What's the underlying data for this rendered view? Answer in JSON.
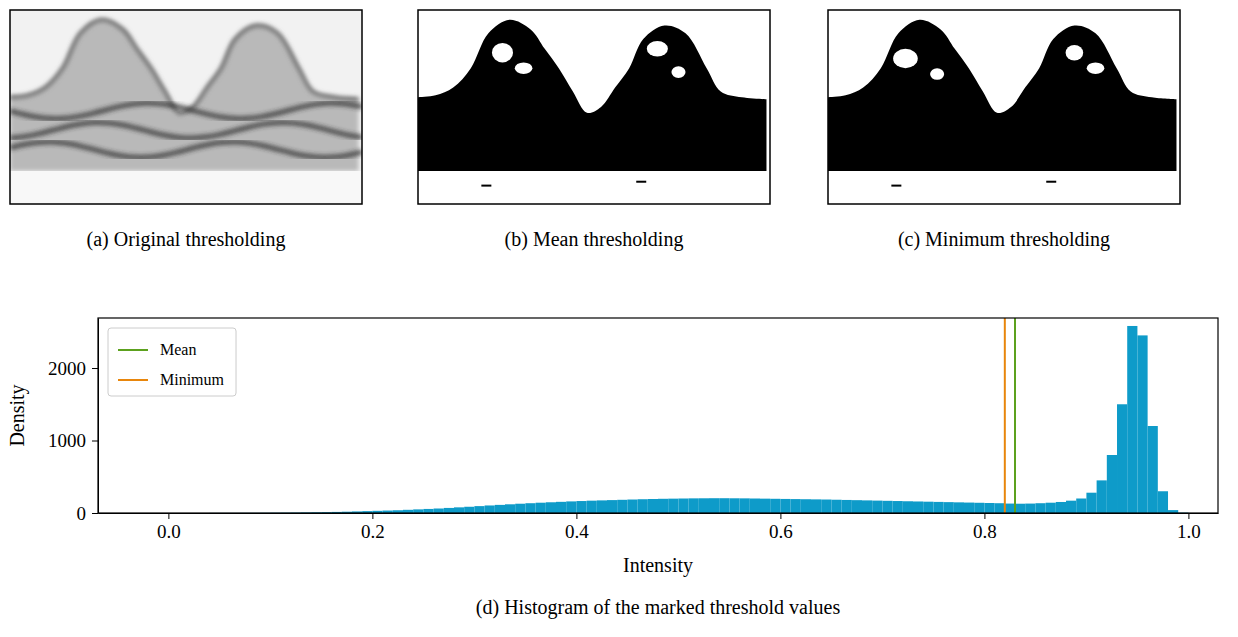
{
  "panels": [
    {
      "caption": "(a) Original thresholding"
    },
    {
      "caption": "(b) Mean thresholding"
    },
    {
      "caption": "(c) Minimum thresholding"
    }
  ],
  "chart_data": {
    "type": "histogram",
    "caption": "(d) Histogram of the marked threshold values",
    "x_label": "Intensity",
    "y_label": "Density",
    "color": "#0e9bc9",
    "bins": [
      0,
      0.01,
      0.02,
      0.03,
      0.04,
      0.05,
      0.06,
      0.07,
      0.08,
      0.09,
      0.1,
      0.11,
      0.12,
      0.13,
      0.14,
      0.15,
      0.16,
      0.17,
      0.18,
      0.19,
      0.2,
      0.21,
      0.22,
      0.23,
      0.24,
      0.25,
      0.26,
      0.27,
      0.28,
      0.29,
      0.3,
      0.31,
      0.32,
      0.33,
      0.34,
      0.35,
      0.36,
      0.37,
      0.38,
      0.39,
      0.4,
      0.41,
      0.42,
      0.43,
      0.44,
      0.45,
      0.46,
      0.47,
      0.48,
      0.49,
      0.5,
      0.51,
      0.52,
      0.53,
      0.54,
      0.55,
      0.56,
      0.57,
      0.58,
      0.59,
      0.6,
      0.61,
      0.62,
      0.63,
      0.64,
      0.65,
      0.66,
      0.67,
      0.68,
      0.69,
      0.7,
      0.71,
      0.72,
      0.73,
      0.74,
      0.75,
      0.76,
      0.77,
      0.78,
      0.79,
      0.8,
      0.81,
      0.82,
      0.83,
      0.84,
      0.85,
      0.86,
      0.87,
      0.88,
      0.89,
      0.9,
      0.91,
      0.92,
      0.93,
      0.94,
      0.95,
      0.96,
      0.97,
      0.98,
      0.99,
      1
    ],
    "values": [
      0,
      0,
      0,
      0,
      1,
      1,
      1,
      2,
      2,
      3,
      4,
      5,
      6,
      8,
      10,
      12,
      15,
      18,
      22,
      26,
      30,
      34,
      38,
      44,
      50,
      56,
      62,
      70,
      78,
      86,
      95,
      104,
      112,
      120,
      128,
      135,
      142,
      148,
      154,
      160,
      165,
      170,
      174,
      178,
      182,
      186,
      190,
      193,
      196,
      198,
      200,
      202,
      203,
      204,
      204,
      203,
      202,
      200,
      198,
      196,
      194,
      192,
      190,
      188,
      186,
      183,
      180,
      177,
      174,
      171,
      168,
      165,
      162,
      159,
      156,
      153,
      150,
      147,
      144,
      141,
      138,
      135,
      130,
      128,
      130,
      135,
      142,
      152,
      170,
      200,
      280,
      450,
      800,
      1500,
      2580,
      2450,
      1200,
      300,
      40,
      5
    ],
    "series": [
      {
        "name": "Mean",
        "type": "vline",
        "color": "#5ca11e",
        "x": 0.83
      },
      {
        "name": "Minimum",
        "type": "vline",
        "color": "#e8860c",
        "x": 0.82
      }
    ],
    "xlim": [
      -0.069,
      1.029
    ],
    "xticks": [
      {
        "value": 0,
        "label": "0.0"
      },
      {
        "value": 0.2,
        "label": "0.2"
      },
      {
        "value": 0.4,
        "label": "0.4"
      },
      {
        "value": 0.6,
        "label": "0.6"
      },
      {
        "value": 0.8,
        "label": "0.8"
      },
      {
        "value": 1,
        "label": "1.0"
      }
    ],
    "ylim": [
      0,
      2690
    ],
    "yticks": [
      0,
      1000,
      2000
    ],
    "legend": "upper left"
  }
}
